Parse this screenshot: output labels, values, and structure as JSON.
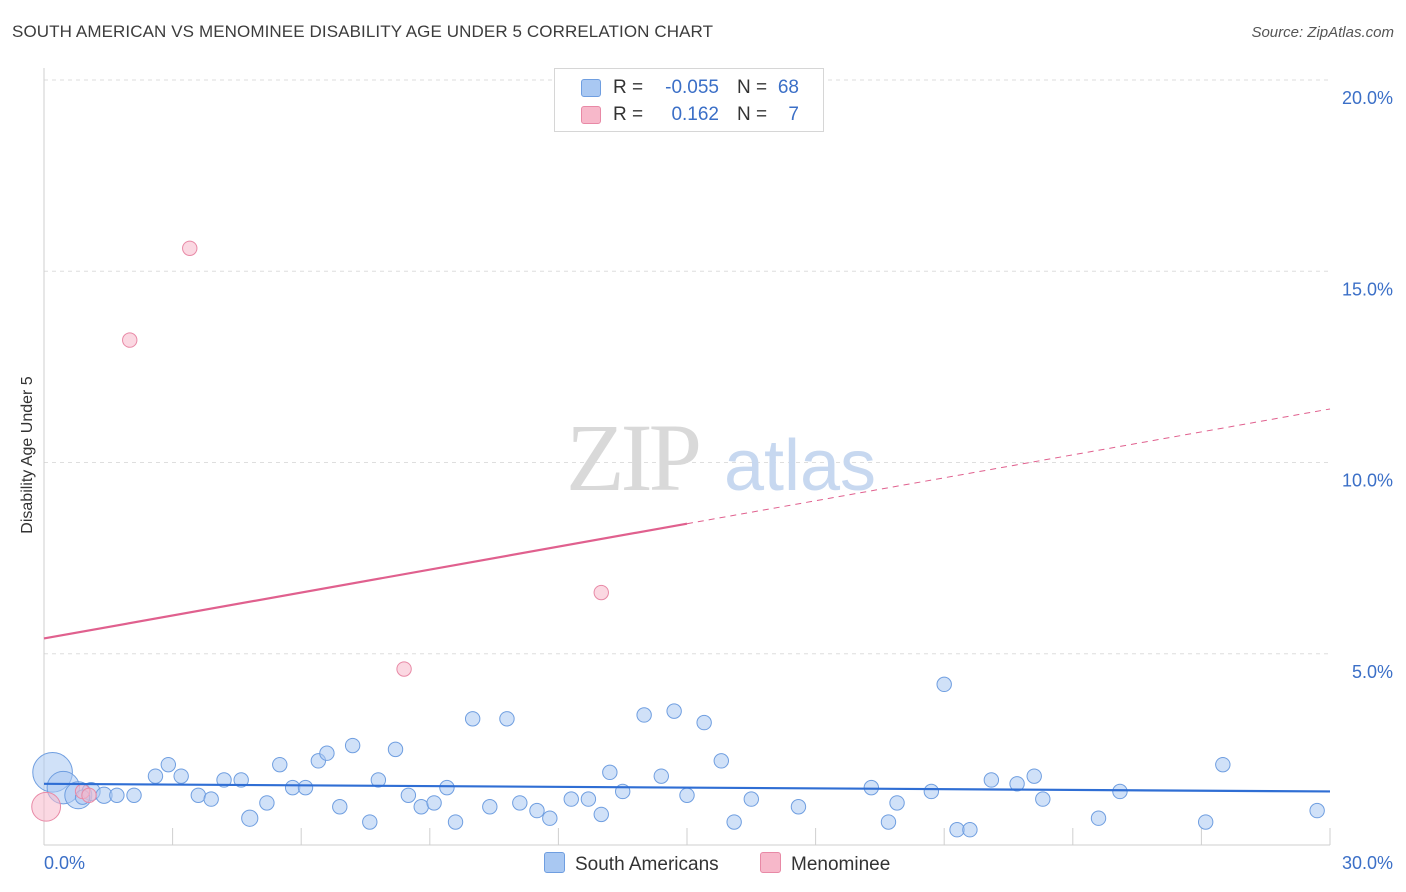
{
  "chart_data": {
    "type": "scatter",
    "title": "SOUTH AMERICAN VS MENOMINEE DISABILITY AGE UNDER 5 CORRELATION CHART",
    "source": "Source: ZipAtlas.com",
    "watermark": {
      "zip": "ZIP",
      "atlas": "atlas"
    },
    "xlabel": "",
    "ylabel": "Disability Age Under 5",
    "xlim": [
      0,
      30
    ],
    "ylim": [
      0,
      20
    ],
    "x_tick_labels": [
      "0.0%",
      "30.0%"
    ],
    "y_ticks": [
      5,
      10,
      15,
      20
    ],
    "y_tick_labels": [
      "5.0%",
      "10.0%",
      "15.0%",
      "20.0%"
    ],
    "grid": true,
    "legend_position": "top-center",
    "colors": {
      "south_americans_fill": "#a9c8f2",
      "south_americans_stroke": "#6f9ee0",
      "south_americans_line": "#2f6ed4",
      "menominee_fill": "#f7b8ca",
      "menominee_stroke": "#e889a6",
      "menominee_line": "#e0608e",
      "tick_label": "#3b6fc7",
      "grid": "#dedede"
    },
    "series": [
      {
        "name": "South Americans",
        "stats": {
          "r_label": "R =",
          "r": "-0.055",
          "n_label": "N =",
          "n": "68"
        },
        "trend": {
          "x": [
            0,
            30
          ],
          "y": [
            1.6,
            1.4
          ],
          "dashed_from": null
        },
        "points": [
          [
            0.2,
            1.9,
            2.2
          ],
          [
            0.45,
            1.5,
            1.8
          ],
          [
            0.8,
            1.3,
            1.5
          ],
          [
            1.1,
            1.4,
            1.0
          ],
          [
            1.4,
            1.3,
            0.9
          ],
          [
            1.7,
            1.3,
            0.8
          ],
          [
            2.1,
            1.3,
            0.8
          ],
          [
            2.6,
            1.8,
            0.8
          ],
          [
            2.9,
            2.1,
            0.8
          ],
          [
            3.2,
            1.8,
            0.8
          ],
          [
            3.6,
            1.3,
            0.8
          ],
          [
            3.9,
            1.2,
            0.8
          ],
          [
            4.2,
            1.7,
            0.8
          ],
          [
            4.6,
            1.7,
            0.8
          ],
          [
            4.8,
            0.7,
            0.9
          ],
          [
            5.2,
            1.1,
            0.8
          ],
          [
            5.5,
            2.1,
            0.8
          ],
          [
            5.8,
            1.5,
            0.8
          ],
          [
            6.1,
            1.5,
            0.8
          ],
          [
            6.4,
            2.2,
            0.8
          ],
          [
            6.6,
            2.4,
            0.8
          ],
          [
            6.9,
            1.0,
            0.8
          ],
          [
            7.2,
            2.6,
            0.8
          ],
          [
            7.6,
            0.6,
            0.8
          ],
          [
            7.8,
            1.7,
            0.8
          ],
          [
            8.2,
            2.5,
            0.8
          ],
          [
            8.5,
            1.3,
            0.8
          ],
          [
            8.8,
            1.0,
            0.8
          ],
          [
            9.1,
            1.1,
            0.8
          ],
          [
            9.4,
            1.5,
            0.8
          ],
          [
            9.6,
            0.6,
            0.8
          ],
          [
            10.0,
            3.3,
            0.8
          ],
          [
            10.4,
            1.0,
            0.8
          ],
          [
            10.8,
            3.3,
            0.8
          ],
          [
            11.1,
            1.1,
            0.8
          ],
          [
            11.5,
            0.9,
            0.8
          ],
          [
            11.8,
            0.7,
            0.8
          ],
          [
            12.3,
            1.2,
            0.8
          ],
          [
            12.7,
            1.2,
            0.8
          ],
          [
            13.0,
            0.8,
            0.8
          ],
          [
            13.2,
            1.9,
            0.8
          ],
          [
            13.5,
            1.4,
            0.8
          ],
          [
            14.0,
            3.4,
            0.8
          ],
          [
            14.4,
            1.8,
            0.8
          ],
          [
            14.7,
            3.5,
            0.8
          ],
          [
            15.0,
            1.3,
            0.8
          ],
          [
            15.4,
            3.2,
            0.8
          ],
          [
            15.8,
            2.2,
            0.8
          ],
          [
            16.1,
            0.6,
            0.8
          ],
          [
            16.5,
            1.2,
            0.8
          ],
          [
            17.6,
            1.0,
            0.8
          ],
          [
            19.3,
            1.5,
            0.8
          ],
          [
            19.7,
            0.6,
            0.8
          ],
          [
            19.9,
            1.1,
            0.8
          ],
          [
            20.7,
            1.4,
            0.8
          ],
          [
            21.0,
            4.2,
            0.8
          ],
          [
            21.3,
            0.4,
            0.8
          ],
          [
            21.6,
            0.4,
            0.8
          ],
          [
            22.1,
            1.7,
            0.8
          ],
          [
            22.7,
            1.6,
            0.8
          ],
          [
            23.1,
            1.8,
            0.8
          ],
          [
            23.3,
            1.2,
            0.8
          ],
          [
            24.6,
            0.7,
            0.8
          ],
          [
            25.1,
            1.4,
            0.8
          ],
          [
            27.1,
            0.6,
            0.8
          ],
          [
            27.5,
            2.1,
            0.8
          ],
          [
            29.7,
            0.9,
            0.8
          ],
          [
            0.9,
            1.25,
            0.8
          ]
        ]
      },
      {
        "name": "Menominee",
        "stats": {
          "r_label": "R =",
          "r": "0.162",
          "n_label": "N =",
          "n": "7"
        },
        "trend": {
          "x": [
            0,
            30
          ],
          "y": [
            5.4,
            11.4
          ],
          "dashed_from": 15
        },
        "points": [
          [
            0.05,
            1.0,
            1.6
          ],
          [
            0.9,
            1.4,
            0.8
          ],
          [
            2.0,
            13.2,
            0.8
          ],
          [
            3.4,
            15.6,
            0.8
          ],
          [
            8.4,
            4.6,
            0.8
          ],
          [
            13.0,
            6.6,
            0.8
          ],
          [
            1.05,
            1.3,
            0.8
          ]
        ]
      }
    ]
  }
}
